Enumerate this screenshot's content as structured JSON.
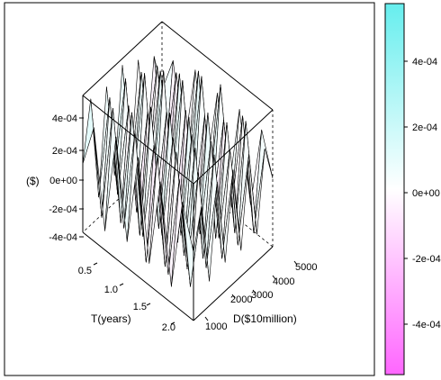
{
  "chart_data": {
    "type": "surface3d",
    "axes": {
      "z": {
        "label": "($)",
        "ticks": [
          "4e-04",
          "2e-04",
          "0e+00",
          "-2e-04",
          "-4e-04"
        ],
        "range": [
          -0.0005,
          0.0005
        ]
      },
      "x": {
        "label": "T(years)",
        "ticks": [
          "0.5",
          "1.0",
          "1.5",
          "2.0"
        ],
        "range": [
          0.3,
          2.3
        ]
      },
      "y": {
        "label": "D($10million)",
        "ticks": [
          "1000",
          "2000",
          "3000",
          "4000",
          "5000"
        ],
        "range": [
          500,
          5500
        ]
      }
    },
    "colorbar": {
      "ticks": [
        "4e-04",
        "2e-04",
        "0e+00",
        "-2e-04",
        "-4e-04"
      ],
      "range": [
        -0.00055,
        0.00055
      ],
      "colors": {
        "high": "#66eeee",
        "mid": "#ffffff",
        "low": "#ff66ff"
      }
    },
    "surface": {
      "x": [
        0.3,
        0.5,
        0.7,
        0.9,
        1.1,
        1.3,
        1.5,
        1.7,
        1.9,
        2.1,
        2.3
      ],
      "y": [
        500,
        1000,
        1500,
        2000,
        2500,
        3000,
        3500,
        4000,
        4500,
        5000,
        5500
      ],
      "z": [
        [
          0,
          0.00042,
          -0.00035,
          0.0004,
          -0.0003,
          0.00045,
          -0.0004,
          0.00038,
          -0.00036,
          0.0003,
          0
        ],
        [
          0.00033,
          -0.00038,
          0.00044,
          -0.00032,
          0.00047,
          -0.00034,
          0.00041,
          -0.00039,
          0.00035,
          -0.00042,
          0.00028
        ],
        [
          -0.00036,
          0.00048,
          -0.00041,
          0.00039,
          -0.00044,
          0.00052,
          -0.00037,
          0.00043,
          -0.00045,
          0.00031,
          -0.0003
        ],
        [
          0.00039,
          -0.00033,
          0.00046,
          -0.00049,
          0.00036,
          -0.0004,
          0.00055,
          -0.00034,
          0.00042,
          -0.00038,
          0.00034
        ],
        [
          -0.00031,
          0.00044,
          -0.00038,
          0.00051,
          -0.00043,
          0.00037,
          -0.00046,
          0.00049,
          -0.00035,
          0.00045,
          -0.00033
        ],
        [
          0.00037,
          -0.00045,
          0.00035,
          -0.00036,
          0.00048,
          -0.00052,
          0.00039,
          -0.00041,
          0.00053,
          -0.00037,
          0.0003
        ],
        [
          -0.00034,
          0.00039,
          -0.00047,
          0.00042,
          -0.00035,
          0.00046,
          -0.00044,
          0.00036,
          -0.00039,
          0.00048,
          -0.00036
        ],
        [
          0.00032,
          -0.00041,
          0.00043,
          -0.00038,
          0.00045,
          -0.00033,
          0.0005,
          -0.00047,
          0.00034,
          -0.00035,
          0.00031
        ],
        [
          -0.00038,
          0.00035,
          -0.00036,
          0.00047,
          -0.00039,
          0.00041,
          -0.00035,
          0.00044,
          -0.00042,
          0.00038,
          -0.00032
        ],
        [
          0.0003,
          -0.00037,
          0.00041,
          -0.00034,
          0.00043,
          -0.00038,
          0.00036,
          -0.00039,
          0.00046,
          -0.00041,
          0.00029
        ],
        [
          0,
          0.00028,
          -0.00032,
          0.00035,
          -0.00029,
          0.00033,
          -0.00031,
          0.00034,
          -0.0003,
          0.00027,
          0
        ]
      ]
    }
  }
}
